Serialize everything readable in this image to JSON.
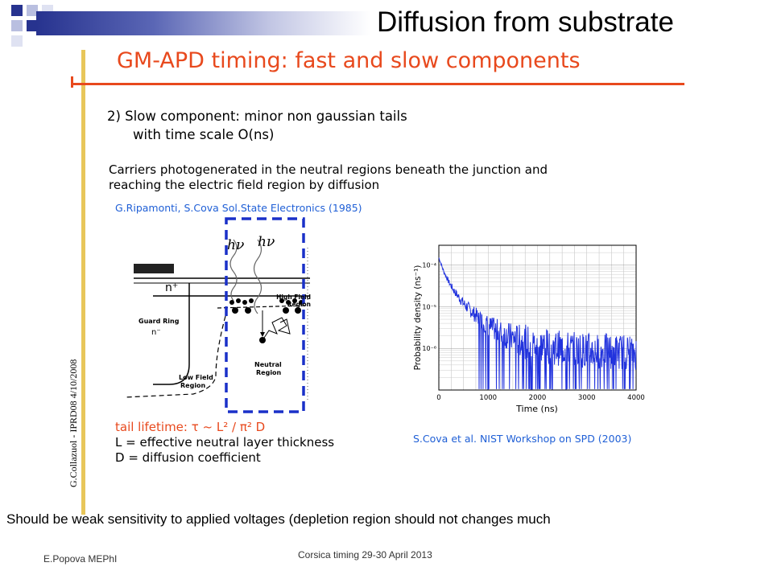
{
  "slide": {
    "main_title": "Diffusion from substrate",
    "inner_title": "GM-APD timing: fast and slow components",
    "point_line1": "2) Slow component: minor non gaussian tails",
    "point_line2": "with time scale O(ns)",
    "desc_line1": "Carriers photogenerated in the neutral regions beneath the junction and",
    "desc_line2": "reaching the electric field region by diffusion",
    "ref_left": "G.Ripamonti, S.Cova Sol.State Electronics (1985)",
    "ref_right": "S.Cova et al. NIST Workshop on SPD (2003)",
    "side_caption": "G.Collazuol - IPRD08 4/10/2008",
    "formula_line1": "tail lifetime: τ ~ L² / π² D",
    "formula_line2": "L = effective neutral layer thickness",
    "formula_line3": "D = diffusion coefficient",
    "bottom_text": "Should be weak sensitivity to applied voltages (depletion region should not changes much",
    "footer_left": "E.Popova MEPhI",
    "footer_center": "Corsica timing 29-30 April 2013"
  },
  "diagram": {
    "photon_label": "hν",
    "n_plus": "n⁺",
    "high_field": "High Field",
    "region": "Region",
    "guard_ring": "Guard Ring",
    "n_minus": "n⁻",
    "neutral": "Neutral",
    "low_field": "Low Field"
  },
  "chart_data": {
    "type": "line",
    "xlabel": "Time (ns)",
    "ylabel": "Probability density (ns⁻¹)",
    "xlim": [
      0,
      4000
    ],
    "ylim_log": [
      1e-07,
      0.0003
    ],
    "x_ticks": [
      "0",
      "1000",
      "2000",
      "3000",
      "4000"
    ],
    "y_ticks": [
      "10⁻⁴",
      "10⁻⁵",
      "10⁻⁶"
    ],
    "grid": true,
    "series": [
      {
        "color": "#2233dd",
        "x": [
          0,
          100,
          200,
          300,
          500,
          700,
          1000,
          1300,
          1600,
          2000,
          2500,
          3000,
          3500,
          4000
        ],
        "y": [
          0.00015,
          7e-05,
          4e-05,
          2.5e-05,
          1.2e-05,
          7e-06,
          3.5e-06,
          2.2e-06,
          1.6e-06,
          1.2e-06,
          1e-06,
          9e-07,
          8.5e-07,
          8e-07
        ]
      }
    ]
  }
}
